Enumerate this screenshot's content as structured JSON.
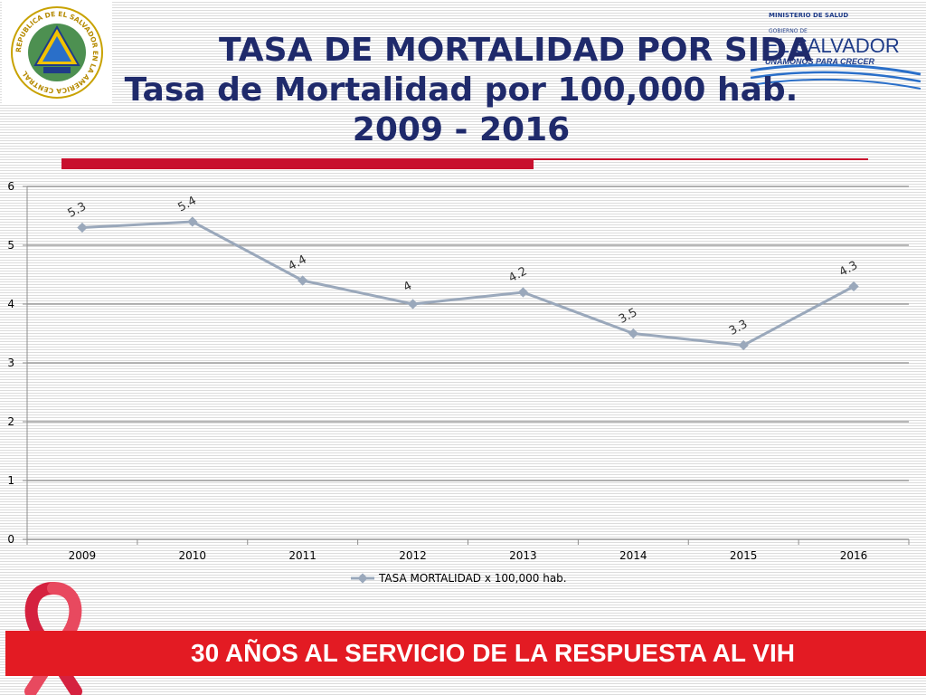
{
  "title": {
    "line1": "TASA DE MORTALIDAD POR SIDA",
    "line2": "Tasa de Mortalidad por 100,000 hab.",
    "line3": "2009 - 2016"
  },
  "logo": {
    "ministry": "MINISTERIO DE SALUD",
    "gobierno": "GOBIERNO DE",
    "country": "EL SALVADOR",
    "slogan": "UNÁMONOS PARA CRECER"
  },
  "seal": {
    "text": "REPUBLICA DE EL SALVADOR EN LA AMERICA CENTRAL"
  },
  "banner": {
    "text": "30 AÑOS AL SERVICIO DE LA RESPUESTA AL VIH"
  },
  "icons": {
    "ribbon": "aids-awareness-ribbon-icon",
    "seal": "coat-of-arms-icon"
  },
  "colors": {
    "title": "#1f2a6b",
    "accent_red": "#c8102e",
    "banner_red": "#e31b23",
    "series": "#9aa8bb"
  },
  "chart_data": {
    "type": "line",
    "x": [
      "2009",
      "2010",
      "2011",
      "2012",
      "2013",
      "2014",
      "2015",
      "2016"
    ],
    "series": [
      {
        "name": "TASA MORTALIDAD x 100,000 hab.",
        "values": [
          5.3,
          5.4,
          4.4,
          4,
          4.2,
          3.5,
          3.3,
          4.3
        ],
        "data_labels": [
          "5.3",
          "5.4",
          "4.4",
          "4",
          "4.2",
          "3.5",
          "3.3",
          "4.3"
        ]
      }
    ],
    "ylim": [
      0,
      6
    ],
    "yticks": [
      "0",
      "1",
      "2",
      "3",
      "4",
      "5",
      "6"
    ],
    "grid": true,
    "legend": "bottom"
  }
}
